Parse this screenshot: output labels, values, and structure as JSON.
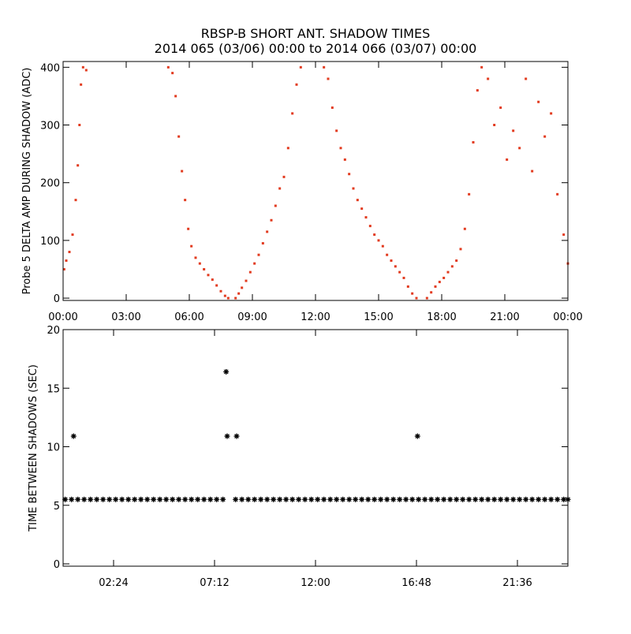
{
  "chart_data": [
    {
      "type": "scatter",
      "title": "RBSP-B SHORT ANT. SHADOW TIMES",
      "subtitle": "2014 065 (03/06) 00:00 to 2014 066 (03/07) 00:00",
      "ylabel": "Probe 5 DELTA AMP DURING SHADOW (ADC)",
      "color": "#e23b1f",
      "marker": "dot",
      "x": [
        0.05,
        0.15,
        0.3,
        0.45,
        0.6,
        0.7,
        0.78,
        0.85,
        0.95,
        1.1,
        5.0,
        5.2,
        5.35,
        5.5,
        5.65,
        5.8,
        5.95,
        6.1,
        6.3,
        6.5,
        6.7,
        6.9,
        7.1,
        7.3,
        7.5,
        7.7,
        7.85,
        8.2,
        8.35,
        8.5,
        8.7,
        8.9,
        9.1,
        9.3,
        9.5,
        9.7,
        9.9,
        10.1,
        10.3,
        10.5,
        10.7,
        10.9,
        11.1,
        11.3,
        12.4,
        12.6,
        12.8,
        13.0,
        13.2,
        13.4,
        13.6,
        13.8,
        14.0,
        14.2,
        14.4,
        14.6,
        14.8,
        15.0,
        15.2,
        15.4,
        15.6,
        15.8,
        16.0,
        16.2,
        16.4,
        16.6,
        16.8,
        17.3,
        17.5,
        17.7,
        17.9,
        18.1,
        18.3,
        18.5,
        18.7,
        18.9,
        19.1,
        19.3,
        19.5,
        19.7,
        19.9,
        20.2,
        20.5,
        20.8,
        21.1,
        21.4,
        21.7,
        22.0,
        22.3,
        22.6,
        22.9,
        23.2,
        23.5,
        23.8,
        24.0
      ],
      "values": [
        50,
        65,
        80,
        110,
        170,
        230,
        300,
        370,
        400,
        395,
        400,
        390,
        350,
        280,
        220,
        170,
        120,
        90,
        70,
        60,
        50,
        40,
        32,
        22,
        12,
        4,
        0,
        0,
        8,
        18,
        30,
        45,
        60,
        75,
        95,
        115,
        135,
        160,
        190,
        210,
        260,
        320,
        370,
        400,
        400,
        380,
        330,
        290,
        260,
        240,
        215,
        190,
        170,
        155,
        140,
        125,
        110,
        100,
        90,
        75,
        65,
        55,
        45,
        35,
        20,
        8,
        0,
        0,
        10,
        20,
        28,
        35,
        45,
        55,
        65,
        85,
        120,
        180,
        270,
        360,
        400,
        380,
        300,
        330,
        240,
        290,
        260,
        380,
        220,
        340,
        280,
        320,
        180,
        110,
        60
      ],
      "xlim": [
        0,
        24
      ],
      "ylim": [
        -4,
        410
      ],
      "xticks": [
        {
          "value": 0,
          "label": "00:00"
        },
        {
          "value": 3,
          "label": "03:00"
        },
        {
          "value": 6,
          "label": "06:00"
        },
        {
          "value": 9,
          "label": "09:00"
        },
        {
          "value": 12,
          "label": "12:00"
        },
        {
          "value": 15,
          "label": "15:00"
        },
        {
          "value": 18,
          "label": "18:00"
        },
        {
          "value": 21,
          "label": "21:00"
        },
        {
          "value": 24,
          "label": "00:00"
        }
      ],
      "yticks": [
        0,
        100,
        200,
        300,
        400
      ]
    },
    {
      "type": "scatter",
      "ylabel": "TIME BETWEEN SHADOWS (SEC)",
      "color": "#000000",
      "marker": "asterisk",
      "x": [
        0.1,
        0.4,
        0.7,
        1.0,
        1.3,
        1.6,
        1.9,
        2.2,
        2.5,
        2.8,
        3.1,
        3.4,
        3.7,
        4.0,
        4.3,
        4.6,
        4.9,
        5.2,
        5.5,
        5.8,
        6.1,
        6.4,
        6.7,
        7.0,
        7.3,
        7.6,
        8.2,
        8.5,
        8.8,
        9.1,
        9.4,
        9.7,
        10.0,
        10.3,
        10.6,
        10.9,
        11.2,
        11.5,
        11.8,
        12.1,
        12.4,
        12.7,
        13.0,
        13.3,
        13.6,
        13.9,
        14.2,
        14.5,
        14.8,
        15.1,
        15.4,
        15.7,
        16.0,
        16.3,
        16.6,
        16.9,
        17.2,
        17.5,
        17.8,
        18.1,
        18.4,
        18.7,
        19.0,
        19.3,
        19.6,
        19.9,
        20.2,
        20.5,
        20.8,
        21.1,
        21.4,
        21.7,
        22.0,
        22.3,
        22.6,
        22.9,
        23.2,
        23.5,
        23.8,
        24.0,
        0.5,
        7.75,
        7.8,
        8.25,
        16.85
      ],
      "values": [
        5.5,
        5.5,
        5.5,
        5.5,
        5.5,
        5.5,
        5.5,
        5.5,
        5.5,
        5.5,
        5.5,
        5.5,
        5.5,
        5.5,
        5.5,
        5.5,
        5.5,
        5.5,
        5.5,
        5.5,
        5.5,
        5.5,
        5.5,
        5.5,
        5.5,
        5.5,
        5.5,
        5.5,
        5.5,
        5.5,
        5.5,
        5.5,
        5.5,
        5.5,
        5.5,
        5.5,
        5.5,
        5.5,
        5.5,
        5.5,
        5.5,
        5.5,
        5.5,
        5.5,
        5.5,
        5.5,
        5.5,
        5.5,
        5.5,
        5.5,
        5.5,
        5.5,
        5.5,
        5.5,
        5.5,
        5.5,
        5.5,
        5.5,
        5.5,
        5.5,
        5.5,
        5.5,
        5.5,
        5.5,
        5.5,
        5.5,
        5.5,
        5.5,
        5.5,
        5.5,
        5.5,
        5.5,
        5.5,
        5.5,
        5.5,
        5.5,
        5.5,
        5.5,
        5.5,
        5.5,
        10.9,
        16.4,
        10.9,
        10.9,
        10.9
      ],
      "xlim": [
        0,
        24
      ],
      "ylim": [
        -0.2,
        20
      ],
      "xticks": [
        {
          "value": 2.4,
          "label": "02:24"
        },
        {
          "value": 7.2,
          "label": "07:12"
        },
        {
          "value": 12,
          "label": "12:00"
        },
        {
          "value": 16.8,
          "label": "16:48"
        },
        {
          "value": 21.6,
          "label": "21:36"
        }
      ],
      "yticks": [
        0,
        5,
        10,
        15,
        20
      ]
    }
  ]
}
